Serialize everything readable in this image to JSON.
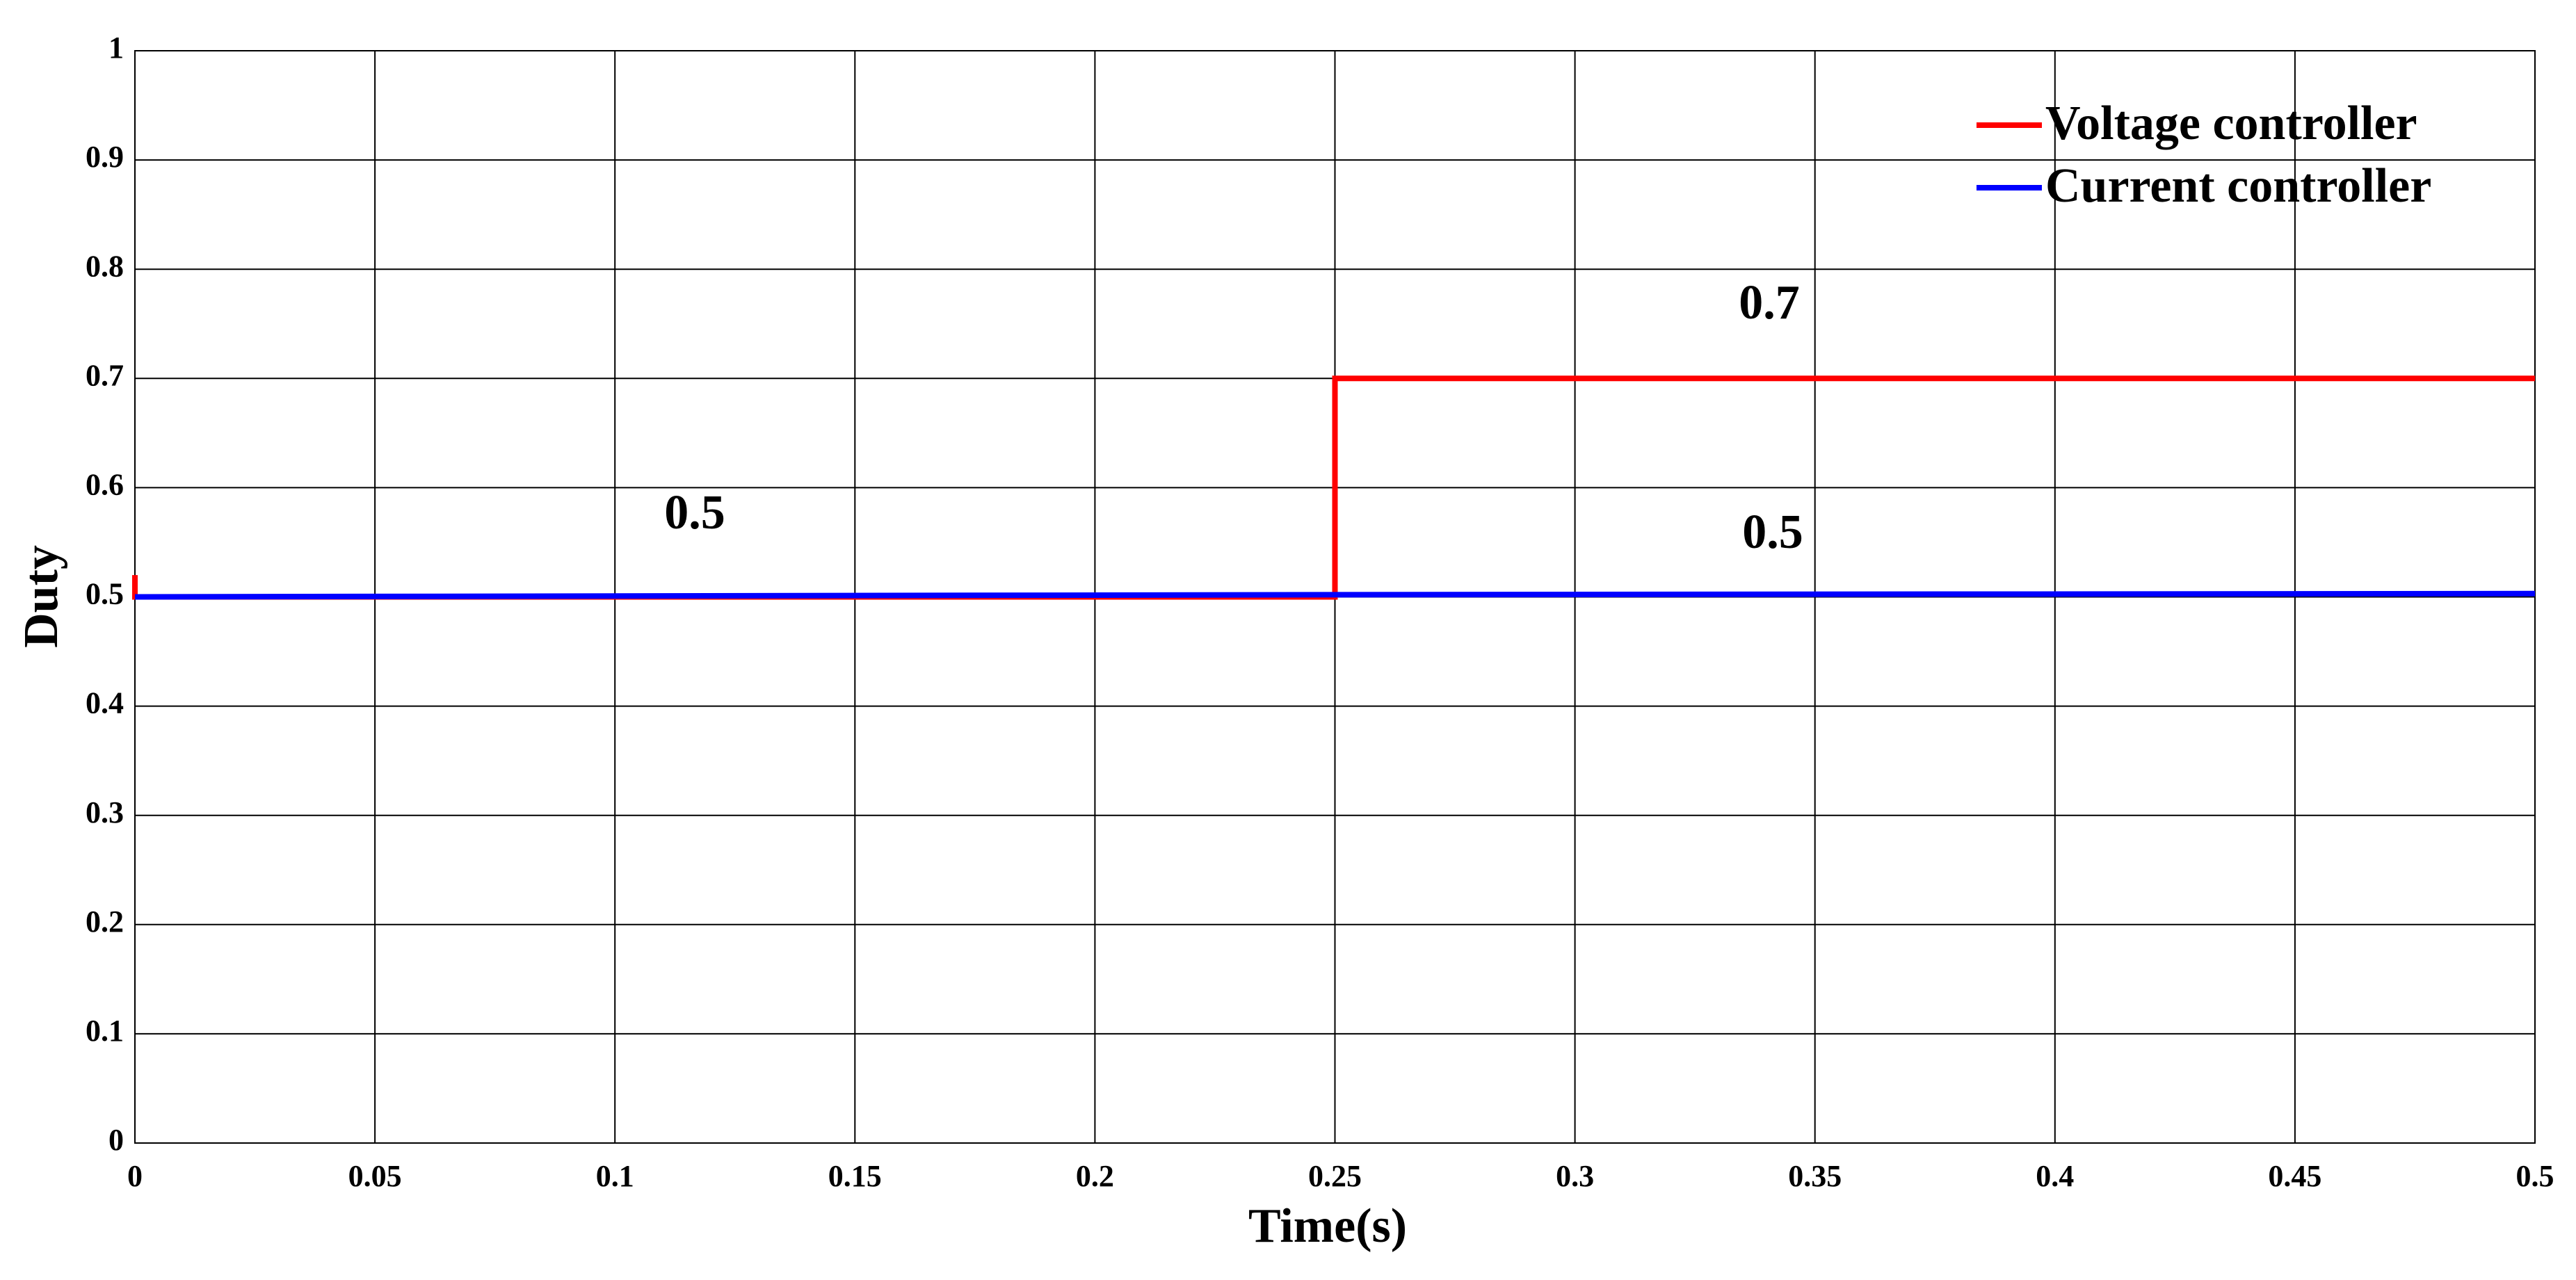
{
  "chart_data": {
    "type": "line",
    "xlabel": "Time(s)",
    "ylabel": "Duty",
    "xlim": [
      0,
      0.5
    ],
    "ylim": [
      0,
      1
    ],
    "xticks": [
      0,
      0.05,
      0.1,
      0.15,
      0.2,
      0.25,
      0.3,
      0.35,
      0.4,
      0.45,
      0.5
    ],
    "yticks": [
      0,
      0.1,
      0.2,
      0.3,
      0.4,
      0.5,
      0.6,
      0.7,
      0.8,
      0.9,
      1
    ],
    "grid": true,
    "legend": "upper right",
    "series": [
      {
        "name": "Voltage controller",
        "color": "#ff0000",
        "x": [
          0,
          0,
          0.25,
          0.25,
          0.5
        ],
        "values": [
          0.52,
          0.5,
          0.5,
          0.7,
          0.7
        ]
      },
      {
        "name": "Current controller",
        "color": "#0000ff",
        "x": [
          0,
          0.25,
          0.5
        ],
        "values": [
          0.5,
          0.502,
          0.503
        ]
      }
    ],
    "annotations": [
      "0.5",
      "0.7",
      "0.5"
    ]
  }
}
